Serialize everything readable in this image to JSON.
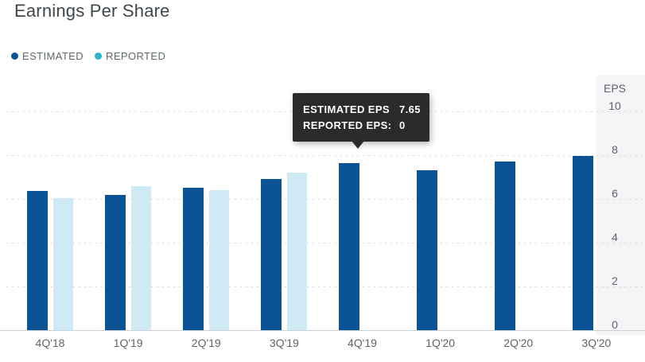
{
  "title": "Earnings Per Share",
  "legend": {
    "estimated_label": "ESTIMATED",
    "reported_label": "REPORTED"
  },
  "tooltip": {
    "rows": [
      {
        "label": "ESTIMATED EPS",
        "value": "7.65"
      },
      {
        "label": "REPORTED EPS:",
        "value": "0"
      }
    ]
  },
  "y_axis": {
    "title": "EPS",
    "ticks": [
      10,
      8,
      6,
      4,
      2,
      0
    ]
  },
  "colors": {
    "estimated_bar": "#0b5394",
    "reported_bar": "#cfe9f5",
    "estimated_dot": "#0b5394",
    "reported_dot": "#2ab5c8",
    "tooltip_bg": "#2b2b2b",
    "panel_bg": "#f5f4f7",
    "grid": "#d6dadd",
    "axis_line": "#ccd1d6",
    "text_gray": "#5d666d",
    "title_color": "#3f464c"
  },
  "chart_data": {
    "type": "bar",
    "title": "Earnings Per Share",
    "xlabel": "",
    "ylabel": "EPS",
    "ylim": [
      0,
      10
    ],
    "grid": "horizontal-dotted",
    "legend_position": "top-left",
    "categories": [
      "4Q'18",
      "1Q'19",
      "2Q'19",
      "3Q'19",
      "4Q'19",
      "1Q'20",
      "2Q'20",
      "3Q'20"
    ],
    "series": [
      {
        "name": "ESTIMATED",
        "values": [
          6.35,
          6.2,
          6.5,
          6.9,
          7.65,
          7.3,
          7.7,
          7.95
        ]
      },
      {
        "name": "REPORTED",
        "values": [
          6.05,
          6.6,
          6.4,
          7.2,
          0,
          0,
          0,
          0
        ]
      }
    ],
    "highlighted_category": "4Q'19",
    "tooltip_values": {
      "estimated": 7.65,
      "reported": 0
    }
  }
}
